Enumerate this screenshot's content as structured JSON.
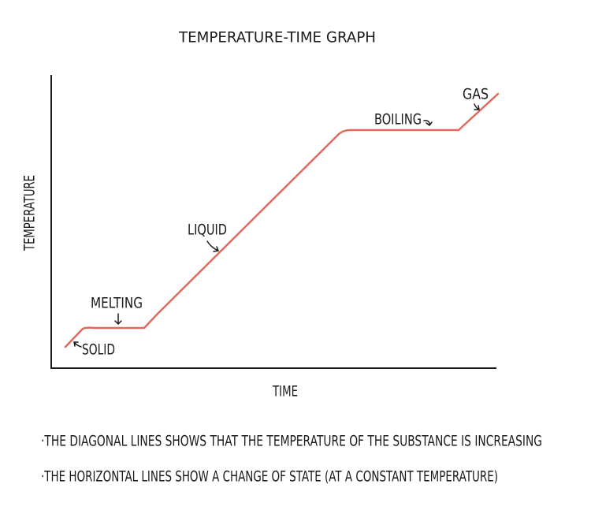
{
  "title": "TEMPERATURE-TIME GRAPH",
  "axes": {
    "x_label": "TIME",
    "y_label": "TEMPERATURE"
  },
  "annotations": [
    "SOLID",
    "MELTING",
    "LIQUID",
    "BOILING",
    "GAS"
  ],
  "notes": [
    "·THE DIAGONAL LINES SHOWS THAT THE TEMPERATURE OF THE SUBSTANCE IS INCREASING",
    "·THE HORIZONTAL LINES SHOW A CHANGE OF STATE (AT A CONSTANT TEMPERATURE)"
  ]
}
